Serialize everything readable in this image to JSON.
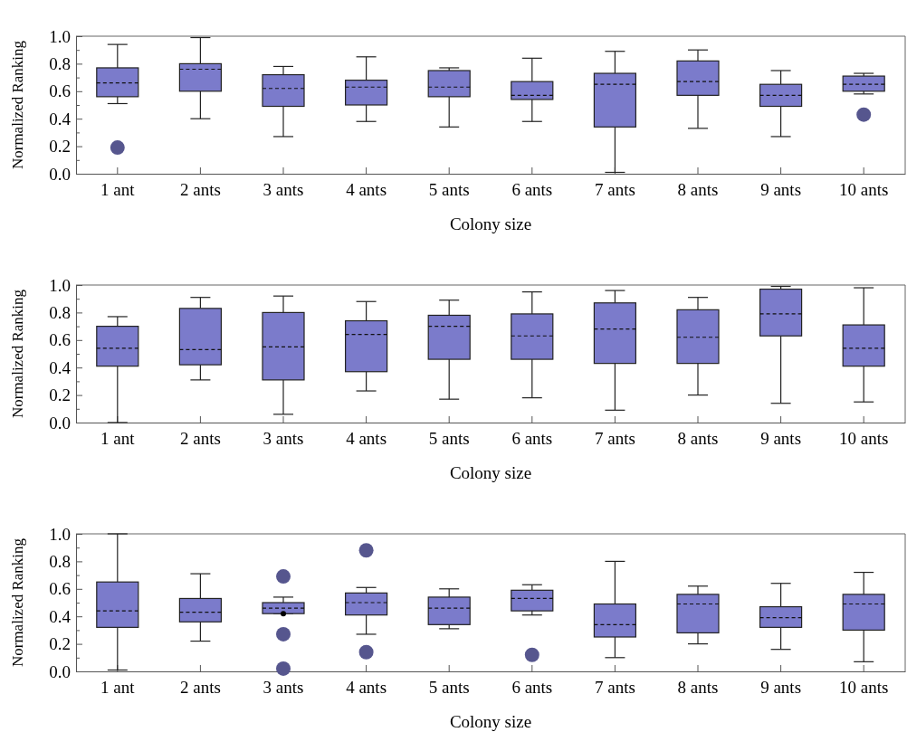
{
  "chart_data": [
    {
      "type": "box",
      "xlabel": "Colony size",
      "ylabel": "Normalized Ranking",
      "color": "#7b7bcb",
      "ylim": [
        0,
        1
      ],
      "yticks": [
        {
          "value": 0,
          "label": "0.0"
        },
        {
          "value": 0.1,
          "label": null
        },
        0.2,
        {
          "value": 0.3,
          "label": null
        },
        0.4,
        {
          "value": 0.5,
          "label": null
        },
        0.6,
        {
          "value": 0.7,
          "label": null
        },
        0.8,
        {
          "value": 0.9,
          "label": null
        },
        {
          "value": 1,
          "label": "1.0"
        }
      ],
      "categories": [
        "1 ant",
        "2 ants",
        "3 ants",
        "4 ants",
        "5 ants",
        "6 ants",
        "7 ants",
        "8 ants",
        "9 ants",
        "10 ants"
      ],
      "boxes": [
        {
          "low": 0.51,
          "q1": 0.56,
          "median": 0.66,
          "q3": 0.77,
          "high": 0.94,
          "outliers": [
            0.19
          ]
        },
        {
          "low": 0.4,
          "q1": 0.6,
          "median": 0.76,
          "q3": 0.8,
          "high": 0.99
        },
        {
          "low": 0.27,
          "q1": 0.49,
          "median": 0.62,
          "q3": 0.72,
          "high": 0.78
        },
        {
          "low": 0.38,
          "q1": 0.5,
          "median": 0.63,
          "q3": 0.68,
          "high": 0.85
        },
        {
          "low": 0.34,
          "q1": 0.56,
          "median": 0.63,
          "q3": 0.75,
          "high": 0.77
        },
        {
          "low": 0.38,
          "q1": 0.54,
          "median": 0.57,
          "q3": 0.67,
          "high": 0.84
        },
        {
          "low": 0.01,
          "q1": 0.34,
          "median": 0.65,
          "q3": 0.73,
          "high": 0.89
        },
        {
          "low": 0.33,
          "q1": 0.57,
          "median": 0.67,
          "q3": 0.82,
          "high": 0.9
        },
        {
          "low": 0.27,
          "q1": 0.49,
          "median": 0.57,
          "q3": 0.65,
          "high": 0.75
        },
        {
          "low": 0.58,
          "q1": 0.6,
          "median": 0.65,
          "q3": 0.71,
          "high": 0.73,
          "outliers": [
            0.43
          ]
        }
      ]
    },
    {
      "type": "box",
      "xlabel": "Colony size",
      "ylabel": "Normalized Ranking",
      "color": "#7b7bcb",
      "ylim": [
        0,
        1
      ],
      "yticks": [
        {
          "value": 0,
          "label": "0.0"
        },
        {
          "value": 0.1,
          "label": null
        },
        0.2,
        {
          "value": 0.3,
          "label": null
        },
        0.4,
        {
          "value": 0.5,
          "label": null
        },
        0.6,
        {
          "value": 0.7,
          "label": null
        },
        0.8,
        {
          "value": 0.9,
          "label": null
        },
        {
          "value": 1,
          "label": "1.0"
        }
      ],
      "categories": [
        "1 ant",
        "2 ants",
        "3 ants",
        "4 ants",
        "5 ants",
        "6 ants",
        "7 ants",
        "8 ants",
        "9 ants",
        "10 ants"
      ],
      "boxes": [
        {
          "low": 0.0,
          "q1": 0.41,
          "median": 0.54,
          "q3": 0.7,
          "high": 0.77
        },
        {
          "low": 0.31,
          "q1": 0.42,
          "median": 0.53,
          "q3": 0.83,
          "high": 0.91
        },
        {
          "low": 0.06,
          "q1": 0.31,
          "median": 0.55,
          "q3": 0.8,
          "high": 0.92
        },
        {
          "low": 0.23,
          "q1": 0.37,
          "median": 0.64,
          "q3": 0.74,
          "high": 0.88
        },
        {
          "low": 0.17,
          "q1": 0.46,
          "median": 0.7,
          "q3": 0.78,
          "high": 0.89
        },
        {
          "low": 0.18,
          "q1": 0.46,
          "median": 0.63,
          "q3": 0.79,
          "high": 0.95
        },
        {
          "low": 0.09,
          "q1": 0.43,
          "median": 0.68,
          "q3": 0.87,
          "high": 0.96
        },
        {
          "low": 0.2,
          "q1": 0.43,
          "median": 0.62,
          "q3": 0.82,
          "high": 0.91
        },
        {
          "low": 0.14,
          "q1": 0.63,
          "median": 0.79,
          "q3": 0.97,
          "high": 0.99
        },
        {
          "low": 0.15,
          "q1": 0.41,
          "median": 0.54,
          "q3": 0.71,
          "high": 0.98
        }
      ]
    },
    {
      "type": "box",
      "xlabel": "Colony size",
      "ylabel": "Normalized Ranking",
      "color": "#7b7bcb",
      "ylim": [
        0,
        1
      ],
      "yticks": [
        {
          "value": 0,
          "label": "0.0"
        },
        {
          "value": 0.1,
          "label": null
        },
        0.2,
        {
          "value": 0.3,
          "label": null
        },
        0.4,
        {
          "value": 0.5,
          "label": null
        },
        0.6,
        {
          "value": 0.7,
          "label": null
        },
        0.8,
        {
          "value": 0.9,
          "label": null
        },
        {
          "value": 1,
          "label": "1.0"
        }
      ],
      "categories": [
        "1 ant",
        "2 ants",
        "3 ants",
        "4 ants",
        "5 ants",
        "6 ants",
        "7 ants",
        "8 ants",
        "9 ants",
        "10 ants"
      ],
      "boxes": [
        {
          "low": 0.01,
          "q1": 0.32,
          "median": 0.44,
          "q3": 0.65,
          "high": 1.0
        },
        {
          "low": 0.22,
          "q1": 0.36,
          "median": 0.43,
          "q3": 0.53,
          "high": 0.71
        },
        {
          "low": 0.42,
          "q1": 0.42,
          "median": 0.46,
          "q3": 0.5,
          "high": 0.54,
          "mean": 0.42,
          "outliers": [
            0.69,
            0.27,
            0.02
          ]
        },
        {
          "low": 0.27,
          "q1": 0.41,
          "median": 0.5,
          "q3": 0.57,
          "high": 0.61,
          "outliers": [
            0.88,
            0.14
          ]
        },
        {
          "low": 0.31,
          "q1": 0.34,
          "median": 0.46,
          "q3": 0.54,
          "high": 0.6
        },
        {
          "low": 0.41,
          "q1": 0.44,
          "median": 0.53,
          "q3": 0.59,
          "high": 0.63,
          "outliers": [
            0.12
          ]
        },
        {
          "low": 0.1,
          "q1": 0.25,
          "median": 0.34,
          "q3": 0.49,
          "high": 0.8
        },
        {
          "low": 0.2,
          "q1": 0.28,
          "median": 0.49,
          "q3": 0.56,
          "high": 0.62
        },
        {
          "low": 0.16,
          "q1": 0.32,
          "median": 0.39,
          "q3": 0.47,
          "high": 0.64
        },
        {
          "low": 0.07,
          "q1": 0.3,
          "median": 0.49,
          "q3": 0.56,
          "high": 0.72
        }
      ]
    }
  ]
}
